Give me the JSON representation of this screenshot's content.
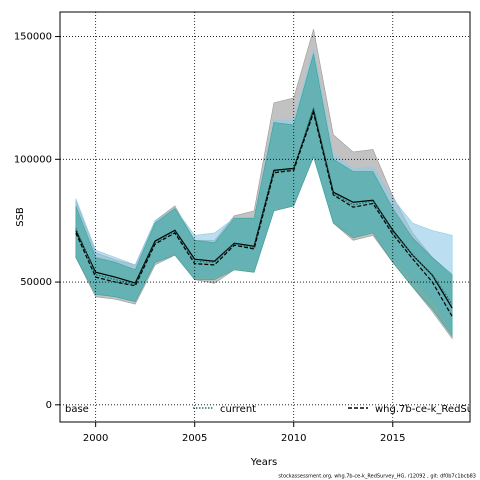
{
  "chart_data": {
    "type": "band-line",
    "x_label": "Years",
    "y_label": "SSB",
    "footer": "stockassessment.org, whg.7b-ce-k_RedSurvey_HG, r12092 , git: df0b7c1bcb83",
    "x": [
      1999,
      2000,
      2001,
      2002,
      2003,
      2004,
      2005,
      2006,
      2007,
      2008,
      2009,
      2010,
      2011,
      2012,
      2013,
      2014,
      2015,
      2016,
      2017,
      2018
    ],
    "xlim": [
      1998.2,
      2018.9
    ],
    "xticks": [
      2000,
      2005,
      2010,
      2015
    ],
    "ylim": [
      -7000,
      160000
    ],
    "yticks": [
      0,
      50000,
      100000,
      150000
    ],
    "grid": true,
    "series": [
      {
        "name": "base",
        "color": "#000000",
        "band_color": "#9a9a9a",
        "dash": "solid",
        "values": [
          71000,
          54000,
          52000,
          49600,
          66700,
          71100,
          59300,
          58500,
          65800,
          64600,
          95500,
          96300,
          120000,
          86600,
          82500,
          83300,
          71100,
          61000,
          52800,
          39400
        ],
        "upper": [
          83000,
          62000,
          59000,
          57000,
          75000,
          81000,
          67000,
          67000,
          77000,
          79000,
          123000,
          125000,
          153000,
          110000,
          103000,
          104000,
          85000,
          70000,
          60000,
          52000
        ],
        "lower": [
          60000,
          44000,
          43000,
          41000,
          57000,
          61000,
          51000,
          49500,
          55000,
          54000,
          79000,
          81000,
          101000,
          74000,
          67000,
          69000,
          58000,
          48000,
          38000,
          27000
        ]
      },
      {
        "name": "current",
        "color": "#1f6e6a",
        "band_color": "#8ecae6",
        "dash": "dotted",
        "values": [
          72000,
          53000,
          51000,
          49000,
          66000,
          70500,
          58500,
          58000,
          65500,
          64000,
          95000,
          96000,
          121000,
          86000,
          81500,
          83000,
          70500,
          61000,
          53000,
          41000
        ],
        "upper": [
          84000,
          63000,
          60000,
          57000,
          75000,
          80000,
          69000,
          70000,
          76000,
          76000,
          116000,
          116000,
          145000,
          102000,
          96000,
          97000,
          84000,
          74000,
          71000,
          69000
        ],
        "lower": [
          61000,
          46000,
          44000,
          42000,
          58000,
          62000,
          52000,
          52000,
          56000,
          55000,
          80000,
          82000,
          102000,
          75000,
          69000,
          71000,
          60000,
          51000,
          43000,
          30000
        ]
      },
      {
        "name": "whg.7b-ce-k_RedSu",
        "color": "#000000",
        "band_color": "#3aa39b",
        "dash": "dashed",
        "values": [
          70000,
          52000,
          50000,
          48500,
          65500,
          70000,
          57500,
          57000,
          65000,
          63500,
          94500,
          95500,
          119000,
          85500,
          80500,
          82000,
          69500,
          59500,
          50000,
          36000
        ],
        "upper": [
          81000,
          60000,
          58000,
          55000,
          74000,
          80000,
          67000,
          66000,
          76000,
          76000,
          115000,
          114000,
          143000,
          100000,
          95000,
          95000,
          80000,
          68000,
          60000,
          53000
        ],
        "lower": [
          60000,
          45000,
          44000,
          42000,
          58000,
          61000,
          51000,
          51000,
          55000,
          54000,
          79000,
          81000,
          101000,
          74000,
          68000,
          70000,
          58000,
          48000,
          39000,
          28000
        ]
      }
    ]
  }
}
